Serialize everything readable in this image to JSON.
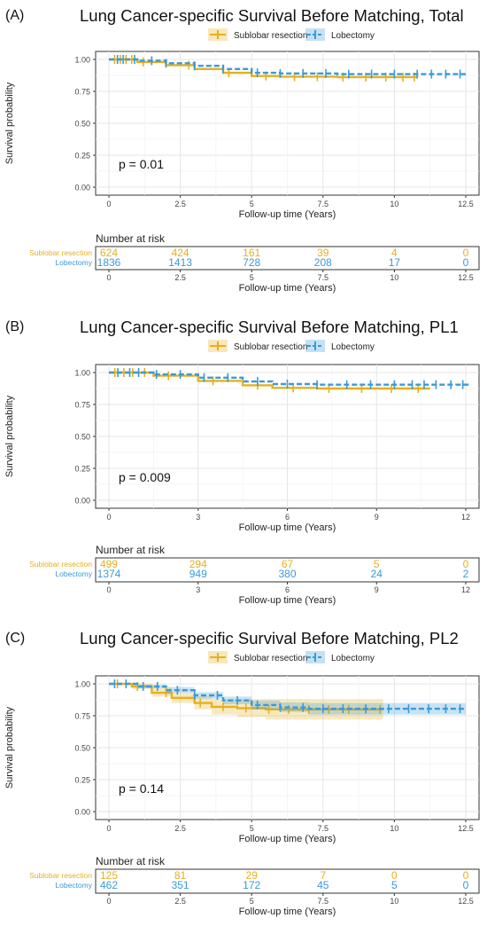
{
  "colors": {
    "sublobar": "#E6B01E",
    "lobectomy": "#3A9AD9"
  },
  "chart_data": [
    {
      "type": "line",
      "panel_label": "(A)",
      "title": "Lung Cancer-specific Survival Before Matching, Total",
      "legend_position": "top",
      "legend": [
        "Sublobar resection",
        "Lobectomy"
      ],
      "xlabel": "Follow-up time (Years)",
      "ylabel": "Survival probability",
      "xlim": [
        0,
        12.5
      ],
      "ylim": [
        0,
        1
      ],
      "xticks": [
        0,
        2.5,
        5,
        7.5,
        10,
        12.5
      ],
      "xtick_labels": [
        "0",
        "2.5",
        "5",
        "7.5",
        "10",
        "12.5"
      ],
      "yticks": [
        0,
        0.25,
        0.5,
        0.75,
        1.0
      ],
      "ytick_labels": [
        "0.00",
        "0.25",
        "0.50",
        "0.75",
        "1.00"
      ],
      "grid": true,
      "p_text": "p = 0.01",
      "series": [
        {
          "name": "Sublobar resection",
          "x": [
            0,
            1,
            2,
            3,
            4,
            5,
            6,
            8,
            10.8
          ],
          "y": [
            1.0,
            0.98,
            0.955,
            0.925,
            0.895,
            0.87,
            0.865,
            0.862,
            0.86
          ],
          "ci": null,
          "censor_x": [
            0.2,
            0.4,
            0.6,
            0.8,
            1.2,
            2.8,
            4.2,
            5.5,
            6.5,
            7.3,
            8.2,
            9.0,
            9.7,
            10.3,
            10.7
          ]
        },
        {
          "name": "Lobectomy",
          "x": [
            0,
            1,
            2,
            3,
            4,
            5,
            6,
            8,
            12.5
          ],
          "y": [
            1.0,
            0.99,
            0.97,
            0.95,
            0.925,
            0.895,
            0.89,
            0.885,
            0.885
          ],
          "ci": null,
          "censor_x": [
            0.3,
            0.5,
            0.9,
            1.5,
            2.0,
            3.0,
            4.0,
            5.2,
            6.0,
            6.8,
            7.6,
            8.4,
            9.2,
            10.0,
            10.8,
            11.3,
            11.8,
            12.3
          ]
        }
      ],
      "risk_table": {
        "title": "Number at risk",
        "times": [
          0,
          2.5,
          5,
          7.5,
          10,
          12.5
        ],
        "rows": [
          {
            "name": "Sublobar resection",
            "values": [
              "624",
              "424",
              "161",
              "39",
              "4",
              "0"
            ]
          },
          {
            "name": "Lobectomy",
            "values": [
              "1836",
              "1413",
              "728",
              "208",
              "17",
              "0"
            ]
          }
        ],
        "xtick_labels": [
          "0",
          "2.5",
          "5",
          "7.5",
          "10",
          "12.5"
        ],
        "xlabel": "Follow-up time (Years)"
      }
    },
    {
      "type": "line",
      "panel_label": "(B)",
      "title": "Lung Cancer-specific Survival Before Matching, PL1",
      "legend_position": "top",
      "legend": [
        "Sublobar resection",
        "Lobectomy"
      ],
      "xlabel": "Follow-up time (Years)",
      "ylabel": "Survival probability",
      "xlim": [
        0,
        12
      ],
      "ylim": [
        0,
        1
      ],
      "xticks": [
        0,
        3,
        6,
        9,
        12
      ],
      "xtick_labels": [
        "0",
        "3",
        "6",
        "9",
        "12"
      ],
      "yticks": [
        0,
        0.25,
        0.5,
        0.75,
        1.0
      ],
      "ytick_labels": [
        "0.00",
        "0.25",
        "0.50",
        "0.75",
        "1.00"
      ],
      "grid": true,
      "p_text": "p = 0.009",
      "series": [
        {
          "name": "Sublobar resection",
          "x": [
            0,
            1.5,
            3,
            4.5,
            5.5,
            7,
            9,
            10.8
          ],
          "y": [
            1.0,
            0.975,
            0.935,
            0.9,
            0.88,
            0.875,
            0.875,
            0.875
          ],
          "ci": null,
          "censor_x": [
            0.2,
            0.5,
            0.8,
            1.2,
            2.0,
            3.5,
            5.0,
            6.2,
            7.4,
            8.5,
            9.5,
            10.4
          ]
        },
        {
          "name": "Lobectomy",
          "x": [
            0,
            1.5,
            3,
            4.5,
            5.5,
            7,
            9,
            12.1
          ],
          "y": [
            1.0,
            0.985,
            0.96,
            0.93,
            0.91,
            0.905,
            0.905,
            0.905
          ],
          "ci": null,
          "censor_x": [
            0.3,
            0.7,
            1.0,
            1.6,
            2.4,
            3.2,
            4.0,
            5.0,
            6.0,
            7.0,
            8.0,
            8.8,
            9.6,
            10.2,
            10.6,
            11.0,
            11.5,
            11.9
          ]
        }
      ],
      "risk_table": {
        "title": "Number at risk",
        "times": [
          0,
          3,
          6,
          9,
          12
        ],
        "rows": [
          {
            "name": "Sublobar resection",
            "values": [
              "499",
              "294",
              "67",
              "5",
              "0"
            ]
          },
          {
            "name": "Lobectomy",
            "values": [
              "1374",
              "949",
              "380",
              "24",
              "2"
            ]
          }
        ],
        "xtick_labels": [
          "0",
          "3",
          "6",
          "9",
          "12"
        ],
        "xlabel": "Follow-up time (Years)"
      }
    },
    {
      "type": "line",
      "panel_label": "(C)",
      "title": "Lung Cancer-specific Survival Before Matching, PL2",
      "legend_position": "top",
      "legend": [
        "Sublobar resection",
        "Lobectomy"
      ],
      "xlabel": "Follow-up time (Years)",
      "ylabel": "Survival probability",
      "xlim": [
        0,
        12.5
      ],
      "ylim": [
        0,
        1
      ],
      "xticks": [
        0,
        2.5,
        5,
        7.5,
        10,
        12.5
      ],
      "xtick_labels": [
        "0",
        "2.5",
        "5",
        "7.5",
        "10",
        "12.5"
      ],
      "yticks": [
        0,
        0.25,
        0.5,
        0.75,
        1.0
      ],
      "ytick_labels": [
        "0.00",
        "0.25",
        "0.50",
        "0.75",
        "1.00"
      ],
      "grid": true,
      "p_text": "p = 0.14",
      "series": [
        {
          "name": "Sublobar resection",
          "x": [
            0,
            0.8,
            1.5,
            2.2,
            3,
            3.6,
            4.5,
            5.5,
            9.6
          ],
          "y": [
            1.0,
            0.98,
            0.93,
            0.89,
            0.85,
            0.82,
            0.81,
            0.8,
            0.8
          ],
          "ci": {
            "lower": [
              1.0,
              0.96,
              0.9,
              0.85,
              0.8,
              0.76,
              0.74,
              0.72,
              0.72
            ],
            "upper": [
              1.0,
              1.0,
              0.97,
              0.93,
              0.9,
              0.88,
              0.88,
              0.88,
              0.88
            ]
          },
          "censor_x": [
            0.3,
            1.0,
            2.0,
            3.2,
            4.0,
            4.8,
            5.6,
            6.3,
            7.0,
            7.7,
            8.4,
            9.0,
            9.5
          ]
        },
        {
          "name": "Lobectomy",
          "x": [
            0,
            1,
            2,
            3,
            4,
            5,
            6,
            7,
            12.5
          ],
          "y": [
            1.0,
            0.98,
            0.95,
            0.91,
            0.87,
            0.835,
            0.815,
            0.805,
            0.805
          ],
          "ci": {
            "lower": [
              1.0,
              0.965,
              0.93,
              0.885,
              0.84,
              0.8,
              0.78,
              0.76,
              0.76
            ],
            "upper": [
              1.0,
              0.995,
              0.975,
              0.935,
              0.9,
              0.87,
              0.855,
              0.85,
              0.85
            ]
          },
          "censor_x": [
            0.2,
            0.6,
            1.2,
            1.7,
            2.4,
            3.0,
            3.8,
            4.5,
            5.2,
            6.0,
            6.8,
            7.5,
            8.2,
            9.0,
            9.8,
            10.5,
            11.2,
            11.8,
            12.3
          ]
        }
      ],
      "risk_table": {
        "title": "Number at risk",
        "times": [
          0,
          2.5,
          5,
          7.5,
          10,
          12.5
        ],
        "rows": [
          {
            "name": "Sublobar resection",
            "values": [
              "125",
              "81",
              "29",
              "7",
              "0",
              "0"
            ]
          },
          {
            "name": "Lobectomy",
            "values": [
              "462",
              "351",
              "172",
              "45",
              "5",
              "0"
            ]
          }
        ],
        "xtick_labels": [
          "0",
          "2.5",
          "5",
          "7.5",
          "10",
          "12.5"
        ],
        "xlabel": "Follow-up time (Years)"
      }
    }
  ]
}
